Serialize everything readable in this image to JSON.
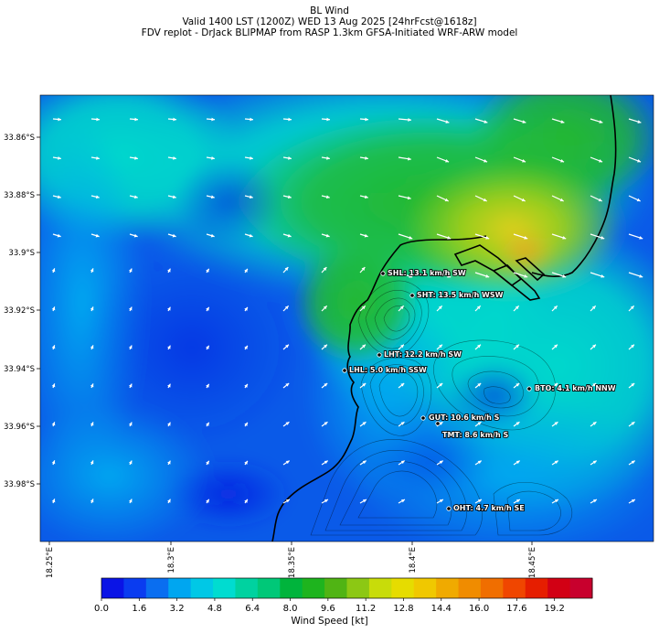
{
  "titles": {
    "line1": "BL Wind",
    "line2": "Valid 1400 LST (1200Z) WED 13 Aug 2025 [24hrFcst@1618z]",
    "line3": "FDV replot - DrJack BLIPMAP from RASP 1.3km GFSA-Initiated WRF-ARW model"
  },
  "axes": {
    "lat_ticks": [
      "33.86°S",
      "33.88°S",
      "33.9°S",
      "33.92°S",
      "33.94°S",
      "33.96°S",
      "33.98°S"
    ],
    "lon_ticks": [
      "18.25°E",
      "18.3°E",
      "18.35°E",
      "18.4°E",
      "18.45°E"
    ]
  },
  "stations": [
    {
      "label": "SHL: 13.1 km/h SW"
    },
    {
      "label": "SHT: 13.5 km/h WSW"
    },
    {
      "label": "LHT: 12.2 km/h SW"
    },
    {
      "label": "LHL: 5.0 km/h SSW"
    },
    {
      "label": "BTO: 4.1 km/h NNW"
    },
    {
      "label": "GUT: 10.6 km/h S"
    },
    {
      "label": "TMT: 8.6 km/h S"
    },
    {
      "label": "OHT: 4.7 km/h SE"
    }
  ],
  "colorbar": {
    "ticks": [
      "0.0",
      "1.6",
      "3.2",
      "4.8",
      "6.4",
      "8.0",
      "9.6",
      "11.2",
      "12.8",
      "14.4",
      "16.0",
      "17.6",
      "19.2"
    ],
    "label": "Wind Speed [kt]",
    "colors": [
      "#0a14e6",
      "#0a3cf0",
      "#0a6ef0",
      "#00a6f0",
      "#00c8e6",
      "#00dcd0",
      "#00d2a0",
      "#00c878",
      "#00b43c",
      "#1eb41e",
      "#50b414",
      "#8cc814",
      "#c8dc0a",
      "#e6dc00",
      "#f0c800",
      "#f0aa00",
      "#f08c00",
      "#f06e00",
      "#f04600",
      "#e61e00",
      "#d20014",
      "#c8002d"
    ]
  },
  "colors": {
    "background_low": "#0050e6",
    "coastline": "#000000",
    "label_text": "#ffffff"
  }
}
